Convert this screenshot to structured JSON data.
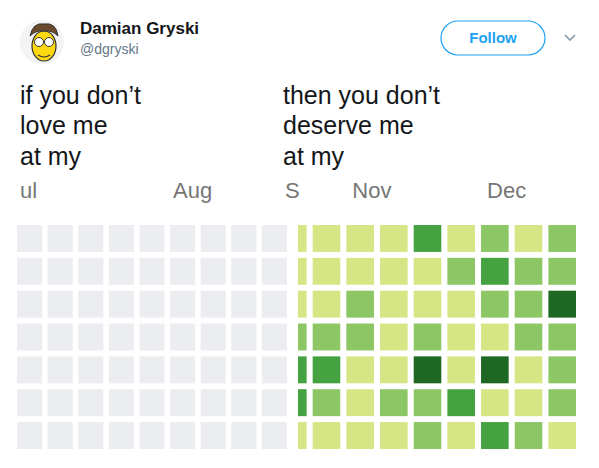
{
  "tweet": {
    "name": "Damian Gryski",
    "handle": "@dgryski",
    "button": "Follow"
  },
  "captions": [
    [
      "if you don’t",
      "love me",
      "at my"
    ],
    [
      "then you don’t",
      "deserve me",
      "at my"
    ]
  ],
  "chart_data": [
    {
      "type": "heatmap",
      "categories": [
        "ul",
        null,
        null,
        null,
        null,
        "Aug",
        null,
        null,
        null
      ],
      "cells": [
        [
          0,
          0,
          0,
          0,
          0,
          0,
          0,
          0,
          0
        ],
        [
          0,
          0,
          0,
          0,
          0,
          0,
          0,
          0,
          0
        ],
        [
          0,
          0,
          0,
          0,
          0,
          0,
          0,
          0,
          0
        ],
        [
          0,
          0,
          0,
          0,
          0,
          0,
          0,
          0,
          0
        ],
        [
          0,
          0,
          0,
          0,
          0,
          0,
          0,
          0,
          0
        ],
        [
          0,
          0,
          0,
          0,
          0,
          0,
          0,
          0,
          0
        ],
        [
          0,
          0,
          0,
          0,
          0,
          0,
          0,
          0,
          0
        ]
      ]
    },
    {
      "type": "heatmap",
      "categories": [
        "S",
        null,
        "Nov",
        null,
        null,
        null,
        "Dec",
        null,
        null
      ],
      "cells": [
        [
          1,
          1,
          1,
          1,
          3,
          1,
          2,
          1,
          2
        ],
        [
          1,
          1,
          1,
          1,
          1,
          2,
          3,
          2,
          2
        ],
        [
          1,
          1,
          2,
          1,
          1,
          1,
          2,
          2,
          4
        ],
        [
          2,
          2,
          2,
          1,
          2,
          1,
          1,
          2,
          2
        ],
        [
          3,
          3,
          1,
          1,
          4,
          1,
          4,
          1,
          2
        ],
        [
          3,
          2,
          1,
          2,
          2,
          3,
          1,
          1,
          2
        ],
        [
          1,
          1,
          1,
          1,
          2,
          1,
          3,
          2,
          1
        ]
      ]
    }
  ]
}
